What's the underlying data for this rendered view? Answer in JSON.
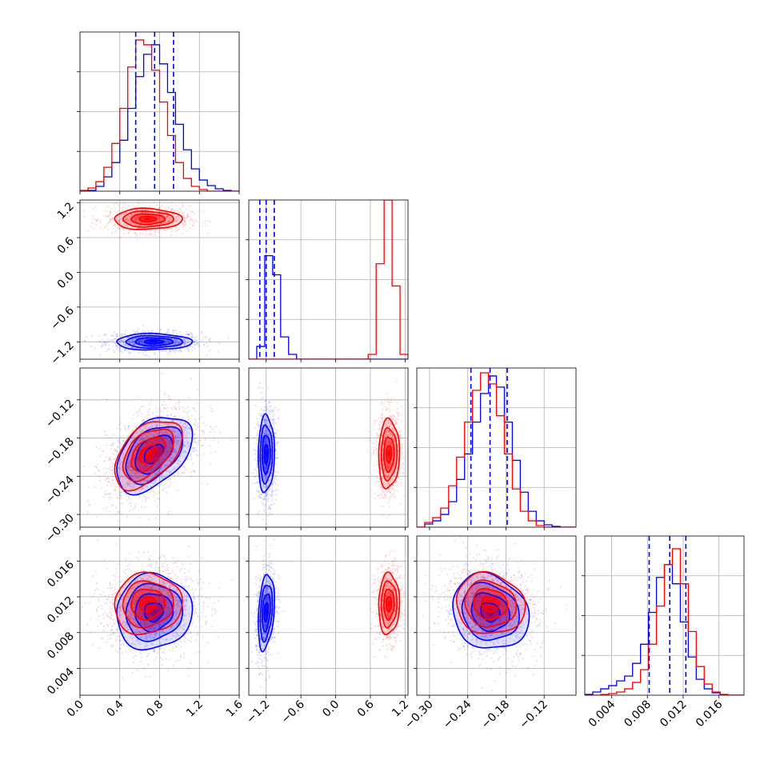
{
  "chart_data": {
    "type": "corner",
    "title": "",
    "grid": true,
    "series": [
      {
        "name": "",
        "color": "#0000ff"
      },
      {
        "name": "",
        "color": "#ff0000"
      }
    ],
    "params": [
      {
        "range": [
          0.0,
          1.6
        ],
        "ticks": [
          0.0,
          0.4,
          0.8,
          1.2,
          1.6
        ],
        "tick_labels": [
          "0.0",
          "0.4",
          "0.8",
          "1.2",
          "1.6"
        ]
      },
      {
        "range": [
          -1.5,
          1.25
        ],
        "ticks": [
          -1.2,
          -0.6,
          0.0,
          0.6,
          1.2
        ],
        "tick_labels": [
          "−1.2",
          "−0.6",
          "0.0",
          "0.6",
          "1.2"
        ]
      },
      {
        "range": [
          -0.32,
          -0.07
        ],
        "ticks": [
          -0.3,
          -0.24,
          -0.18,
          -0.12
        ],
        "tick_labels": [
          "−0.30",
          "−0.24",
          "−0.18",
          "−0.12"
        ]
      },
      {
        "range": [
          0.001,
          0.0188
        ],
        "ticks": [
          0.004,
          0.008,
          0.012,
          0.016
        ],
        "tick_labels": [
          "0.004",
          "0.008",
          "0.012",
          "0.016"
        ]
      }
    ],
    "quantile_lines": [
      [
        0.56,
        0.75,
        0.94
      ],
      [
        -1.31,
        -1.2,
        -1.06
      ],
      [
        -0.235,
        -0.205,
        -0.178
      ],
      [
        0.0082,
        0.0105,
        0.0123
      ]
    ],
    "histograms": [
      {
        "bins": [
          0.0,
          0.08,
          0.16,
          0.24,
          0.32,
          0.4,
          0.48,
          0.56,
          0.64,
          0.72,
          0.8,
          0.88,
          0.96,
          1.04,
          1.12,
          1.2,
          1.28,
          1.36,
          1.44,
          1.52,
          1.6
        ],
        "blue": [
          0.0,
          0.005,
          0.03,
          0.09,
          0.18,
          0.32,
          0.52,
          0.72,
          0.86,
          0.92,
          0.8,
          0.62,
          0.42,
          0.26,
          0.14,
          0.07,
          0.035,
          0.015,
          0.005,
          0.0
        ],
        "red": [
          0.005,
          0.02,
          0.06,
          0.15,
          0.3,
          0.52,
          0.78,
          0.95,
          0.92,
          0.76,
          0.56,
          0.35,
          0.18,
          0.08,
          0.03,
          0.01,
          0.0,
          0.0,
          0.0,
          0.0
        ]
      },
      {
        "bins": [
          -1.5,
          -1.3625,
          -1.225,
          -1.0875,
          -0.95,
          -0.8125,
          -0.675,
          -0.5375,
          -0.4,
          -0.2625,
          -0.125,
          0.0125,
          0.15,
          0.2875,
          0.425,
          0.5625,
          0.7,
          0.8375,
          0.975,
          1.1125,
          1.25
        ],
        "blue": [
          0.0,
          0.08,
          0.65,
          0.53,
          0.14,
          0.03,
          0.0,
          0.0,
          0.0,
          0.0,
          0.0,
          0.0,
          0.0,
          0.0,
          0.0,
          0.0,
          0.0,
          0.0,
          0.0,
          0.0
        ],
        "red": [
          0.0,
          0.0,
          0.0,
          0.0,
          0.0,
          0.0,
          0.0,
          0.0,
          0.0,
          0.0,
          0.0,
          0.0,
          0.0,
          0.0,
          0.0,
          0.03,
          0.6,
          1.0,
          0.46,
          0.03
        ]
      },
      {
        "bins": [
          -0.32,
          -0.3075,
          -0.295,
          -0.2825,
          -0.27,
          -0.2575,
          -0.245,
          -0.2325,
          -0.22,
          -0.2075,
          -0.195,
          -0.1825,
          -0.17,
          -0.1575,
          -0.145,
          -0.1325,
          -0.12,
          -0.1075,
          -0.095,
          -0.0825,
          -0.07
        ],
        "blue": [
          0.0,
          0.02,
          0.04,
          0.08,
          0.16,
          0.3,
          0.46,
          0.66,
          0.84,
          0.95,
          0.88,
          0.66,
          0.42,
          0.22,
          0.1,
          0.04,
          0.015,
          0.005,
          0.0,
          0.0
        ],
        "red": [
          0.0,
          0.03,
          0.06,
          0.12,
          0.26,
          0.44,
          0.66,
          0.86,
          0.97,
          0.9,
          0.7,
          0.46,
          0.24,
          0.1,
          0.04,
          0.01,
          0.0,
          0.0,
          0.0,
          0.0
        ]
      },
      {
        "bins": [
          0.001,
          0.00189,
          0.00278,
          0.00367,
          0.00456,
          0.00545,
          0.00634,
          0.00723,
          0.00812,
          0.00901,
          0.0099,
          0.01079,
          0.01168,
          0.01257,
          0.01346,
          0.01435,
          0.01524,
          0.01613,
          0.01702,
          0.01791,
          0.0188
        ],
        "blue": [
          0.005,
          0.02,
          0.04,
          0.06,
          0.09,
          0.12,
          0.2,
          0.32,
          0.52,
          0.74,
          0.82,
          0.7,
          0.46,
          0.24,
          0.1,
          0.04,
          0.015,
          0.0,
          0.0,
          0.0
        ],
        "red": [
          0.0,
          0.0,
          0.005,
          0.01,
          0.02,
          0.04,
          0.08,
          0.16,
          0.32,
          0.56,
          0.82,
          0.92,
          0.7,
          0.4,
          0.18,
          0.07,
          0.02,
          0.005,
          0.0,
          0.0
        ]
      }
    ],
    "posteriors": {
      "blue": {
        "mean": [
          0.74,
          -1.2,
          -0.205,
          0.0103
        ],
        "std": [
          0.19,
          0.07,
          0.03,
          0.0021
        ],
        "corr": [
          [
            1,
            0,
            0.45,
            0.05
          ],
          [
            0,
            1,
            0.05,
            0.3
          ],
          [
            0.45,
            0.05,
            1,
            -0.15
          ],
          [
            0.05,
            0.3,
            -0.15,
            1
          ]
        ]
      },
      "red": {
        "mean": [
          0.68,
          0.92,
          -0.205,
          0.0112
        ],
        "std": [
          0.17,
          0.09,
          0.027,
          0.0017
        ],
        "corr": [
          [
            1,
            0,
            0.5,
            0.05
          ],
          [
            0,
            1,
            0.05,
            0.05
          ],
          [
            0.5,
            0.05,
            1,
            -0.1
          ],
          [
            0.05,
            0.05,
            -0.1,
            1
          ]
        ]
      }
    },
    "contour_sigmas": [
      0.5,
      1.0,
      1.5,
      2.0
    ]
  }
}
